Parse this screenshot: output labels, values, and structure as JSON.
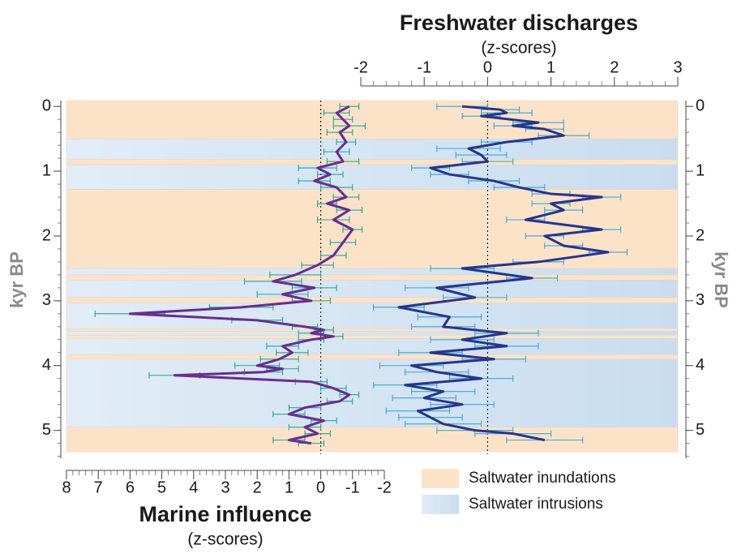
{
  "chart_data": {
    "type": "line",
    "y_label": "kyr BP",
    "ylim": [
      -0.09,
      5.43
    ],
    "yticks": [
      0,
      1,
      2,
      3,
      4,
      5
    ],
    "zero_line": true,
    "top_axis": {
      "title": "Freshwater discharges",
      "subtitle": "(z-scores)",
      "xlim": [
        -2,
        3
      ],
      "xticks": [
        -2,
        -1,
        0,
        1,
        2,
        3
      ]
    },
    "bottom_axis": {
      "title": "Marine influence",
      "subtitle": "(z-scores)",
      "xlim": [
        8,
        -2
      ],
      "xticks": [
        8,
        7,
        6,
        5,
        4,
        3,
        2,
        1,
        0,
        -1,
        -2
      ]
    },
    "bands": [
      {
        "name": "Saltwater inundations",
        "color": "#fce3c8",
        "intervals": [
          [
            -0.09,
            0.5
          ],
          [
            0.82,
            0.9
          ],
          [
            1.28,
            2.5
          ],
          [
            2.6,
            2.68
          ],
          [
            2.95,
            3.03
          ],
          [
            3.43,
            3.47
          ],
          [
            3.53,
            3.58
          ],
          [
            3.83,
            3.9
          ],
          [
            4.95,
            5.33
          ]
        ]
      },
      {
        "name": "Saltwater intrusions",
        "color": "#c9ddef",
        "intervals": [
          [
            0.5,
            0.82
          ],
          [
            0.9,
            1.28
          ],
          [
            2.5,
            2.6
          ],
          [
            2.68,
            2.95
          ],
          [
            3.03,
            3.43
          ],
          [
            3.47,
            3.53
          ],
          [
            3.58,
            3.83
          ],
          [
            3.9,
            4.95
          ]
        ]
      }
    ],
    "series": [
      {
        "axis": "bottom",
        "color": "#6a2c8f",
        "error_color": "#1fa89b",
        "x": [
          0,
          0.1,
          0.2,
          0.3,
          0.4,
          0.55,
          0.7,
          0.85,
          0.95,
          1.05,
          1.15,
          1.25,
          1.4,
          1.5,
          1.6,
          1.75,
          1.9,
          2.1,
          2.3,
          2.45,
          2.6,
          2.7,
          2.8,
          2.9,
          3.0,
          3.1,
          3.2,
          3.3,
          3.4,
          3.45,
          3.5,
          3.55,
          3.6,
          3.7,
          3.8,
          3.9,
          4.0,
          4.05,
          4.1,
          4.15,
          4.25,
          4.35,
          4.45,
          4.55,
          4.65,
          4.75,
          4.85,
          4.95,
          5.05,
          5.15,
          5.2
        ],
        "values": [
          -0.9,
          -0.5,
          -0.7,
          -0.9,
          -0.6,
          -0.8,
          -0.5,
          -0.7,
          0.1,
          -0.3,
          0.2,
          -0.5,
          -0.8,
          -0.2,
          -0.9,
          -0.4,
          -1.0,
          -0.7,
          -0.4,
          0.1,
          0.8,
          1.5,
          0.2,
          1.2,
          0.3,
          2.5,
          6.0,
          2.0,
          0.5,
          -0.1,
          0.3,
          -0.4,
          0.3,
          1.2,
          0.9,
          1.3,
          2.0,
          1.2,
          1.8,
          4.6,
          0.3,
          -0.4,
          -0.9,
          -0.6,
          0.5,
          1.0,
          -0.1,
          0.5,
          0.1,
          1.0,
          0.3
        ],
        "errors": [
          0.3,
          0.4,
          0.3,
          0.5,
          0.4,
          0.3,
          0.4,
          0.5,
          0.6,
          0.4,
          0.5,
          0.5,
          0.4,
          0.3,
          0.4,
          0.5,
          0.3,
          0.4,
          0.4,
          0.5,
          0.8,
          0.9,
          0.7,
          0.8,
          0.6,
          1.0,
          1.1,
          0.8,
          0.4,
          0.3,
          0.4,
          0.3,
          0.4,
          0.5,
          0.5,
          0.6,
          0.7,
          0.5,
          0.6,
          0.8,
          0.5,
          0.4,
          0.3,
          0.4,
          0.5,
          0.5,
          0.4,
          0.5,
          0.4,
          0.5,
          0.4
        ]
      },
      {
        "axis": "top",
        "color": "#27348b",
        "error_color": "#39a6d8",
        "x": [
          0,
          0.05,
          0.1,
          0.15,
          0.25,
          0.3,
          0.35,
          0.45,
          0.55,
          0.65,
          0.75,
          0.85,
          0.95,
          1.05,
          1.15,
          1.25,
          1.35,
          1.4,
          1.5,
          1.6,
          1.75,
          1.9,
          2.0,
          2.15,
          2.25,
          2.4,
          2.5,
          2.65,
          2.8,
          2.95,
          3.1,
          3.25,
          3.4,
          3.5,
          3.6,
          3.7,
          3.8,
          3.9,
          4.0,
          4.1,
          4.2,
          4.3,
          4.4,
          4.5,
          4.6,
          4.7,
          4.8,
          4.9,
          5.0,
          5.05,
          5.15
        ],
        "values": [
          -0.4,
          0.2,
          0.3,
          -0.1,
          0.8,
          0.4,
          0.9,
          1.2,
          0.3,
          -0.3,
          -0.1,
          0,
          -0.9,
          -0.6,
          0.1,
          0.5,
          1.0,
          1.8,
          1.0,
          1.2,
          0.6,
          1.8,
          0.9,
          1.2,
          1.9,
          0.8,
          -0.4,
          0.7,
          -0.8,
          -0.2,
          -1.4,
          -0.6,
          -0.7,
          0.3,
          -0.4,
          0.3,
          -0.9,
          0.1,
          -1.2,
          -0.8,
          -0.1,
          -1.3,
          -0.7,
          -1.0,
          -0.4,
          -1.1,
          -0.9,
          -0.7,
          -0.2,
          0.4,
          0.9
        ],
        "errors": [
          0.4,
          0.3,
          0.4,
          0.3,
          0.4,
          0.3,
          0.3,
          0.4,
          0.4,
          0.5,
          0.4,
          0.4,
          0.3,
          0.3,
          0.4,
          0.4,
          0.3,
          0.3,
          0.3,
          0.3,
          0.3,
          0.3,
          0.3,
          0.3,
          0.3,
          0.4,
          0.5,
          0.4,
          0.5,
          0.5,
          0.4,
          0.5,
          0.5,
          0.5,
          0.5,
          0.5,
          0.5,
          0.5,
          0.5,
          0.5,
          0.5,
          0.5,
          0.5,
          0.5,
          0.5,
          0.5,
          0.5,
          0.6,
          0.6,
          0.6,
          0.6
        ]
      }
    ]
  }
}
